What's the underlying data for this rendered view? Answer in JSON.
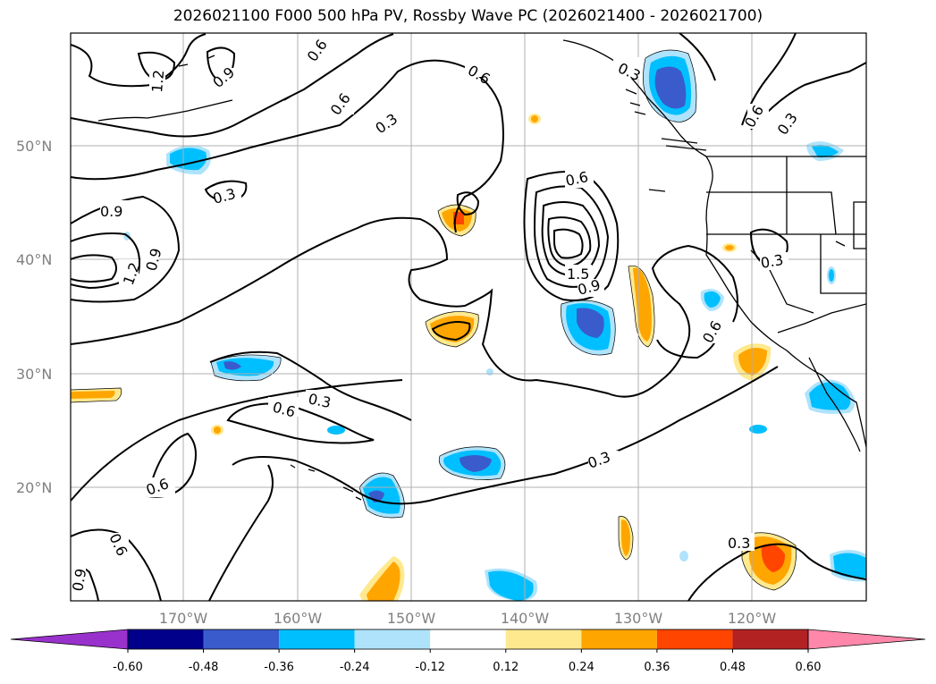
{
  "title": "2026021100 F000 500 hPa PV, Rossby Wave PC (2026021400 - 2026021700)",
  "lat_labels": [
    "50°N",
    "40°N",
    "30°N",
    "20°N"
  ],
  "lon_labels": [
    "170°W",
    "160°W",
    "150°W",
    "140°W",
    "130°W",
    "120°W"
  ],
  "colorbar": {
    "colors": [
      "#9932cc",
      "#00008b",
      "#3a5bcc",
      "#00bfff",
      "#aee3fb",
      "#ffffff",
      "#ffe98e",
      "#ffa500",
      "#ff4500",
      "#b22222",
      "#ff88aa"
    ],
    "labels": [
      "-0.60",
      "-0.48",
      "-0.36",
      "-0.24",
      "-0.12",
      "0.12",
      "0.24",
      "0.36",
      "0.48",
      "0.60"
    ]
  },
  "contour_labels": [
    "1.2",
    "0.9",
    "0.6",
    "0.3",
    "0.6",
    "0.3",
    "0.9",
    "0.3",
    "0.6",
    "0.3",
    "0.6",
    "1.2",
    "0.9",
    "0.6",
    "1.5",
    "0.9",
    "0.3",
    "0.6",
    "0.3",
    "0.6",
    "0.6",
    "0.3",
    "0.6",
    "0.9",
    "0.3"
  ],
  "colors": {
    "grid": "#b0b0b0",
    "axis_text": "#808080",
    "contour": "#000000",
    "coast": "#000000"
  }
}
